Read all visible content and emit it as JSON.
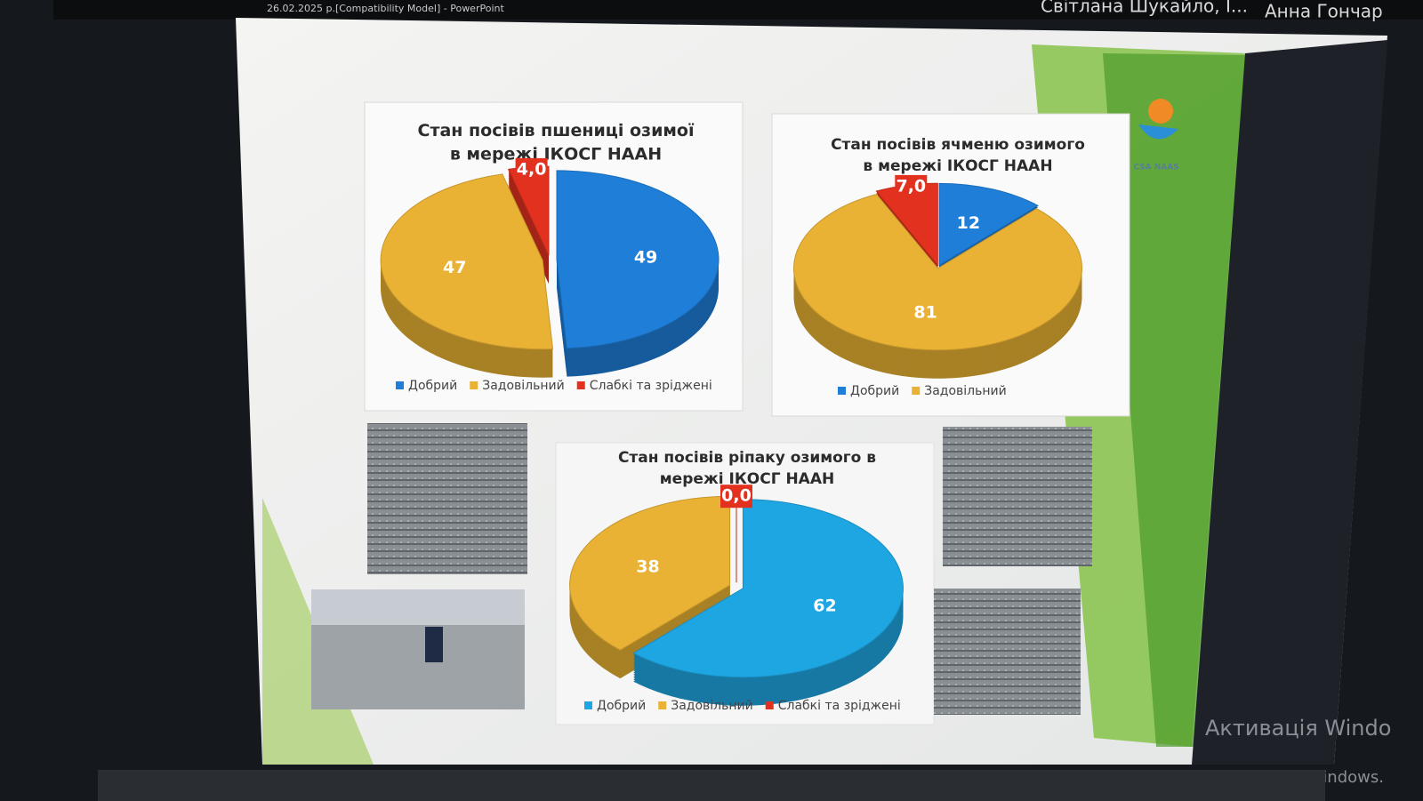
{
  "window": {
    "title": "26.02.2025 р.[Compatibility Model] - PowerPoint",
    "participants": [
      "Світлана Шукайло, І...",
      "Анна Гончар"
    ]
  },
  "logo": "CSA NAAS",
  "watermark": [
    "Активація Windo",
    "активувати Windows."
  ],
  "chart_data": [
    {
      "type": "pie",
      "title": "Стан посівів пшениці озимої в мережі ІКОСГ НААН",
      "categories": [
        "Добрий",
        "Задовільний",
        "Слабкі та зріджені"
      ],
      "values": [
        49,
        47,
        4.0
      ],
      "value_labels": [
        "49",
        "47",
        "4,0"
      ],
      "colors": [
        "#1f7fd8",
        "#e9b234",
        "#e2311f"
      ]
    },
    {
      "type": "pie",
      "title": "Стан посівів ячменю озимого в мережі ІКОСГ НААН",
      "categories": [
        "Добрий",
        "Задовільний",
        null
      ],
      "values": [
        12,
        81,
        7.0
      ],
      "value_labels": [
        "12",
        "81",
        "7,0"
      ],
      "colors": [
        "#1f7fd8",
        "#e9b234",
        "#e2311f"
      ]
    },
    {
      "type": "pie",
      "title": "Стан посівів ріпаку озимого в мережі ІКОСГ НААН",
      "categories": [
        "Добрий",
        "Задовільний",
        "Слабкі та зріджені"
      ],
      "values": [
        62,
        38,
        0.0
      ],
      "value_labels": [
        "62",
        "38",
        "0,0"
      ],
      "colors": [
        "#1ea6e2",
        "#e9b234",
        "#e2311f"
      ]
    }
  ]
}
